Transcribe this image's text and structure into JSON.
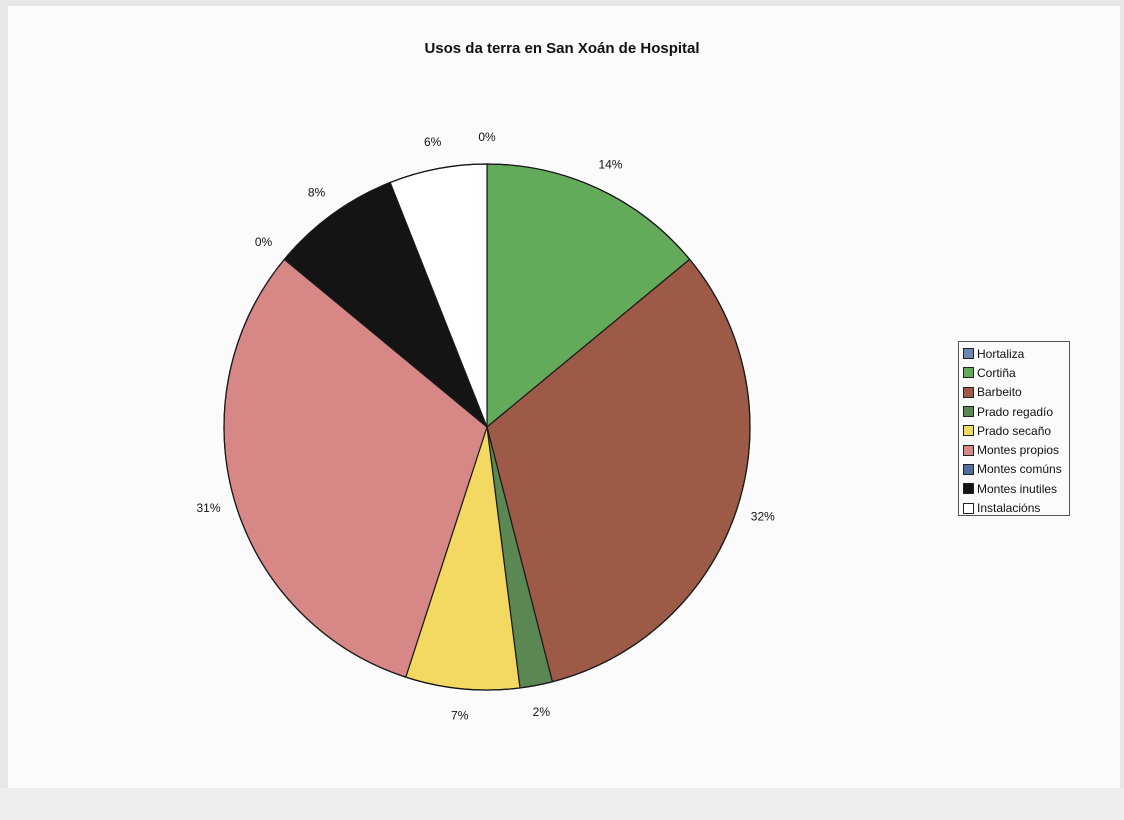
{
  "chart_data": {
    "type": "pie",
    "title": "Usos da terra en San Xoán de Hospital",
    "legend_position": "right",
    "slices": [
      {
        "label": "Hortaliza",
        "value": 0,
        "value_label": "0%",
        "color": "#6b86b5"
      },
      {
        "label": "Cortiña",
        "value": 14,
        "value_label": "14%",
        "color": "#63aa5a"
      },
      {
        "label": "Barbeito",
        "value": 32,
        "value_label": "32%",
        "color": "#9c5a47"
      },
      {
        "label": "Prado regadío",
        "value": 2,
        "value_label": "2%",
        "color": "#5a8752"
      },
      {
        "label": "Prado secaño",
        "value": 7,
        "value_label": "7%",
        "color": "#f3d861"
      },
      {
        "label": "Montes propios",
        "value": 31,
        "value_label": "31%",
        "color": "#d88787"
      },
      {
        "label": "Montes comúns",
        "value": 0,
        "value_label": "0%",
        "color": "#4f6c9f"
      },
      {
        "label": "Montes inutiles",
        "value": 8,
        "value_label": "8%",
        "color": "#141414"
      },
      {
        "label": "Instalacións",
        "value": 6,
        "value_label": "6%",
        "color": "#ffffff"
      }
    ]
  }
}
